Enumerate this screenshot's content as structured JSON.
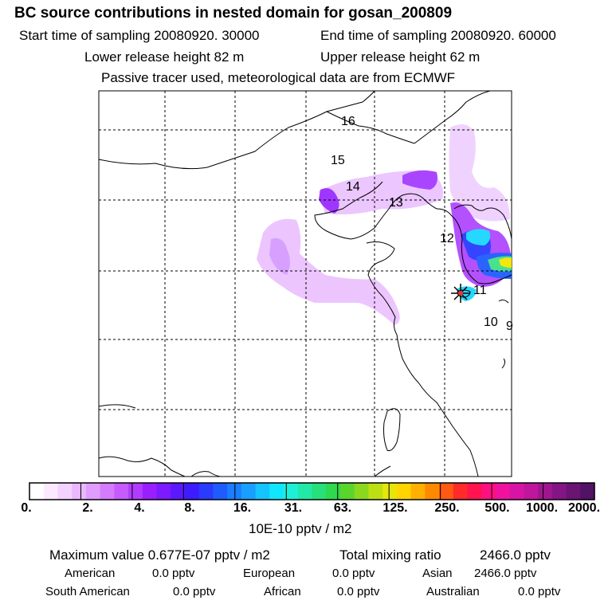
{
  "title": "BC  source contributions in nested domain for gosan_200809",
  "start_time": "Start time of sampling 20080920. 30000",
  "end_time": "End time of sampling 20080920. 60000",
  "lower_release": "Lower release height   82 m",
  "upper_release": "Upper release height   62 m",
  "tracer_note": "Passive tracer used, meteorological data are from ECMWF",
  "map": {
    "time_labels": [
      "16",
      "15",
      "14",
      "13",
      "12",
      "11",
      "10",
      "9"
    ],
    "receptor_marker": "star-marker",
    "colors": {
      "light_purple": "#e6b3ff",
      "pale_purple": "#f1d4ff",
      "mid_purple": "#b94cff",
      "violet": "#7a1fff",
      "blue": "#2a3bff",
      "cyan": "#1ad6ff",
      "green": "#3fe08a",
      "yellow": "#f3e600",
      "red": "#ff2b2b"
    }
  },
  "colorbar": {
    "labels": [
      "0.",
      "2.",
      "4.",
      "8.",
      "16.",
      "31.",
      "63.",
      "125.",
      "250.",
      "500.",
      "1000.",
      "2000."
    ],
    "colors": [
      "#ffffff",
      "#fbeaff",
      "#f4d2ff",
      "#eab8ff",
      "#e09cff",
      "#d37cff",
      "#c65cff",
      "#b13cff",
      "#9a1fff",
      "#7d1aff",
      "#5c18ff",
      "#3d1cff",
      "#2a3bff",
      "#1f5cff",
      "#1a7eff",
      "#17a0ff",
      "#14c4ff",
      "#11e6ff",
      "#1ef0d8",
      "#22e8a8",
      "#27e07a",
      "#2fd84c",
      "#5ad62a",
      "#8cd81f",
      "#bde014",
      "#e6e60c",
      "#ffd400",
      "#ffb000",
      "#ff8a00",
      "#ff5a14",
      "#ff2a2a",
      "#ff1450",
      "#ff0f80",
      "#f0129e",
      "#d814a6",
      "#c0169c",
      "#a01690",
      "#841584",
      "#6a1474",
      "#521266"
    ],
    "unit_label": "10E-10 pptv / m2"
  },
  "summary": {
    "max_value_label": "Maximum value  0.677E-07 pptv / m2",
    "total_mixing_label": "Total mixing ratio",
    "total_mixing_value": "2466.0 pptv",
    "regions": [
      {
        "name": "American",
        "value": "0.0 pptv"
      },
      {
        "name": "European",
        "value": "0.0 pptv"
      },
      {
        "name": "Asian",
        "value": "2466.0 pptv"
      },
      {
        "name": "South American",
        "value": "0.0 pptv"
      },
      {
        "name": "African",
        "value": "0.0 pptv"
      },
      {
        "name": "Australian",
        "value": "0.0 pptv"
      }
    ]
  }
}
